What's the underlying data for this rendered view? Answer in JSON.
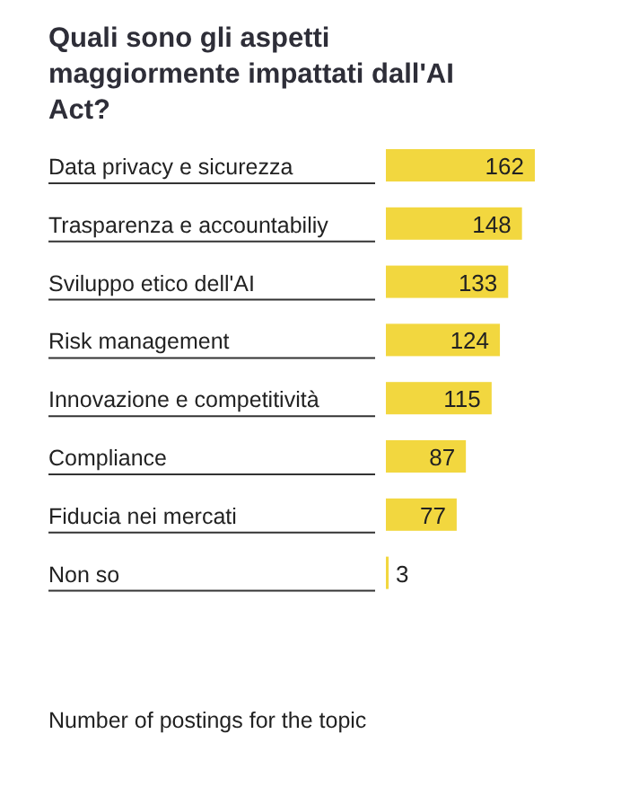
{
  "chart_data": {
    "type": "bar",
    "orientation": "horizontal",
    "title": "Quali sono gli aspetti maggiormente impattati dall'AI Act?",
    "categories": [
      "Data privacy e sicurezza",
      "Trasparenza e accountabiliy",
      "Sviluppo etico dell'AI",
      "Risk management",
      "Innovazione e competitività",
      "Compliance",
      "Fiducia nei mercati",
      "Non so"
    ],
    "values": [
      162,
      148,
      133,
      124,
      115,
      87,
      77,
      3
    ],
    "color": "#f2d73f",
    "data_labels": true,
    "annotations": [
      "Number of postings for the topic"
    ]
  }
}
